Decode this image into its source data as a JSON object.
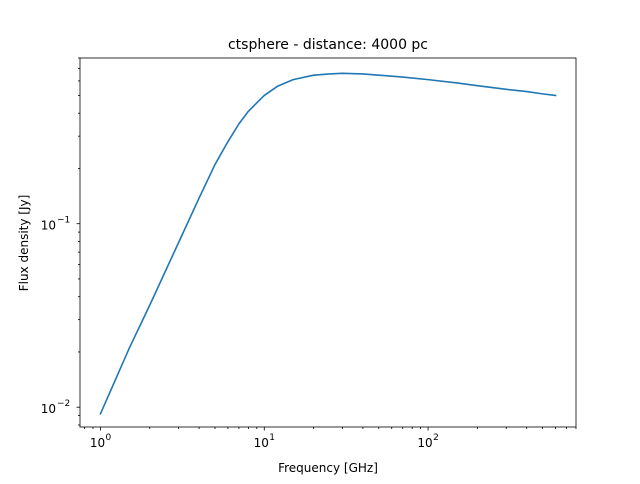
{
  "chart_data": {
    "type": "line",
    "title": "ctsphere - distance: 4000 pc",
    "xlabel": "Frequency [GHz]",
    "ylabel": "Flux density [Jy]",
    "xscale": "log",
    "yscale": "log",
    "xlim": [
      0.75,
      800
    ],
    "ylim": [
      0.0078,
      0.8
    ],
    "grid": false,
    "legend": "none",
    "line_color": "#1f77b4",
    "x_ticks": [
      {
        "value": 1,
        "label": "10",
        "exp": "0"
      },
      {
        "value": 10,
        "label": "10",
        "exp": "1"
      },
      {
        "value": 100,
        "label": "10",
        "exp": "2"
      }
    ],
    "y_ticks": [
      {
        "value": 0.01,
        "label": "10",
        "exp": "−2"
      },
      {
        "value": 0.1,
        "label": "10",
        "exp": "−1"
      }
    ],
    "series": [
      {
        "x": [
          1,
          1.5,
          2,
          3,
          4,
          5,
          6,
          7,
          8,
          10,
          12,
          15,
          20,
          25,
          30,
          40,
          50,
          70,
          100,
          150,
          200,
          300,
          400,
          500,
          600
        ],
        "y": [
          0.0092,
          0.021,
          0.036,
          0.079,
          0.138,
          0.21,
          0.28,
          0.35,
          0.41,
          0.5,
          0.56,
          0.61,
          0.645,
          0.655,
          0.66,
          0.655,
          0.645,
          0.63,
          0.61,
          0.585,
          0.565,
          0.54,
          0.525,
          0.51,
          0.5
        ]
      }
    ]
  }
}
